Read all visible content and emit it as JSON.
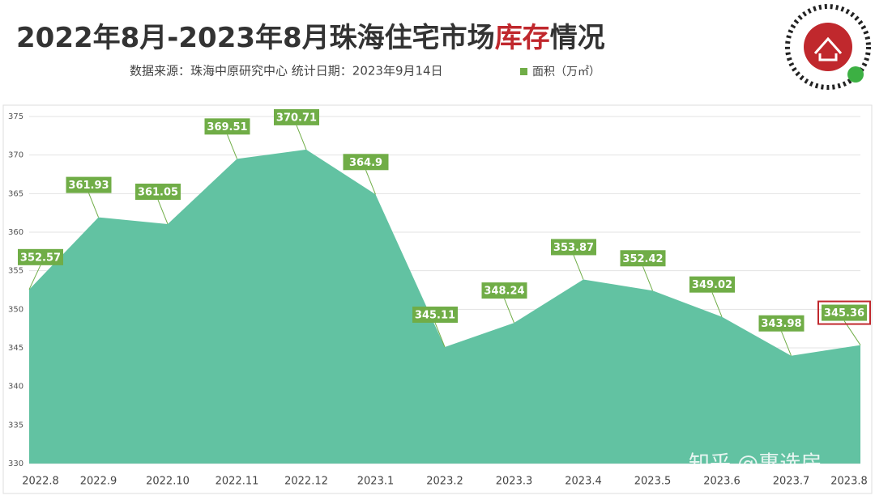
{
  "chart_data": {
    "type": "area",
    "title": [
      "2022年8月-2023年8月珠海住宅市场",
      "库存",
      "情况"
    ],
    "subtitle": "数据来源：珠海中原研究中心  统计日期：2023年9月14日",
    "watermark": "知乎 @惠选房",
    "categories": [
      "2022.8",
      "2022.9",
      "2022.10",
      "2022.11",
      "2022.12",
      "2023.1",
      "2023.2",
      "2023.3",
      "2023.4",
      "2023.5",
      "2023.6",
      "2023.7",
      "2023.8"
    ],
    "series": [
      {
        "name": "面积（万㎡）",
        "color": "#62c2a2",
        "values": [
          352.57,
          361.93,
          361.05,
          369.51,
          370.71,
          364.9,
          345.11,
          348.24,
          353.87,
          352.42,
          349.02,
          343.98,
          345.36
        ]
      }
    ],
    "label_color": "#70ad47",
    "highlight_index": 12,
    "highlight_color": "#c0282d",
    "ylim": [
      330,
      375
    ],
    "yticks": [
      330,
      335,
      340,
      345,
      350,
      355,
      360,
      365,
      370,
      375
    ],
    "grid": true
  }
}
